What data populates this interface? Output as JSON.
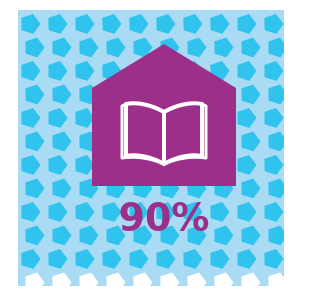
{
  "stat": "90%"
}
